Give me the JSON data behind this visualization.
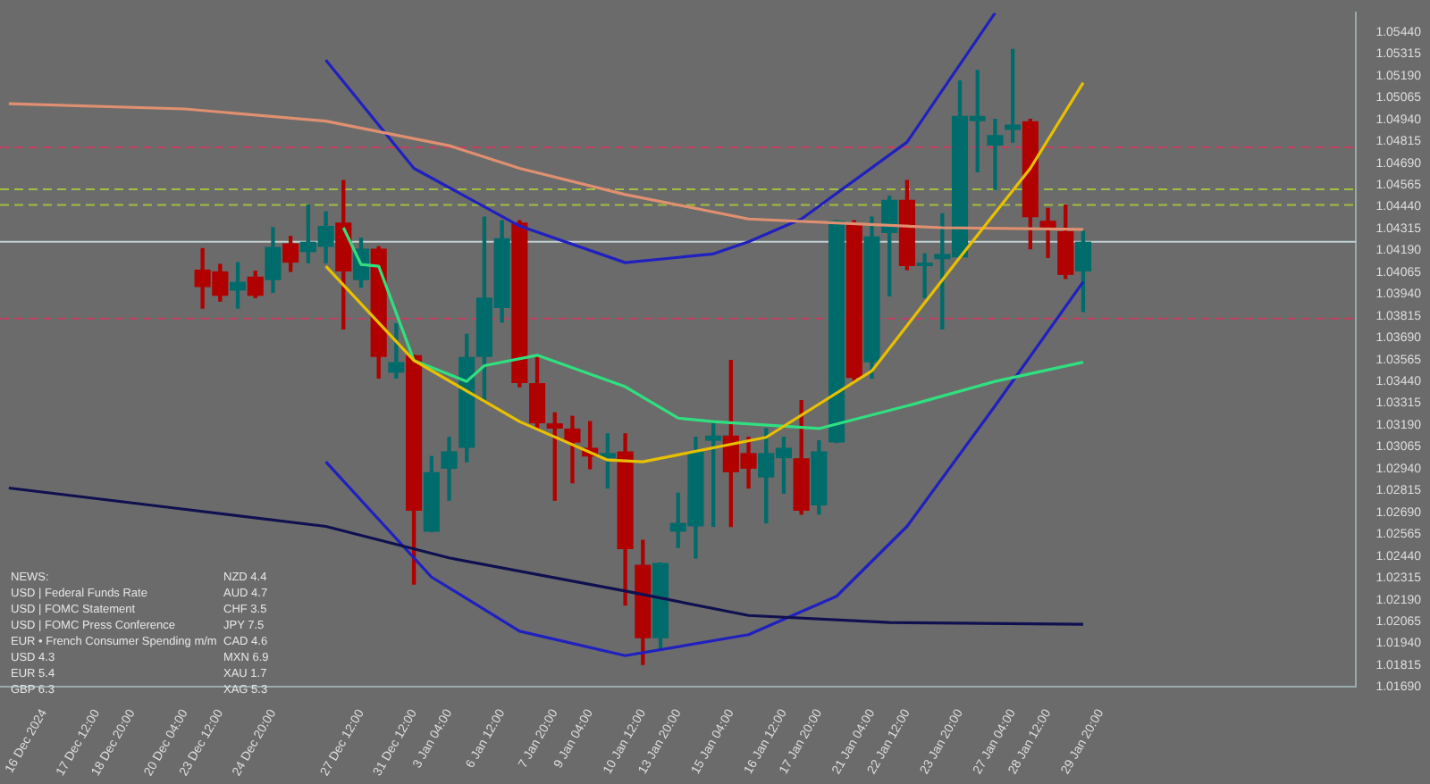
{
  "chart_data": {
    "type": "candlestick",
    "categories": [
      null,
      null,
      "16 Dec 2024",
      null,
      null,
      "17 Dec 12:00",
      null,
      "18 Dec 20:00",
      null,
      null,
      "20 Dec 04:00",
      null,
      "23 Dec 12:00",
      null,
      null,
      "24 Dec 20:00",
      null,
      null,
      null,
      null,
      "27 Dec 12:00",
      null,
      null,
      "31 Dec 12:00",
      null,
      "3 Jan 04:00",
      null,
      null,
      "6 Jan 12:00",
      null,
      null,
      "7 Jan 20:00",
      null,
      "9 Jan 04:00",
      null,
      null,
      "10 Jan 12:00",
      null,
      "13 Jan 20:00",
      null,
      null,
      "15 Jan 04:00",
      null,
      null,
      "16 Jan 12:00",
      null,
      "17 Jan 20:00",
      null,
      null,
      "21 Jan 04:00",
      null,
      "22 Jan 12:00",
      null,
      null,
      "23 Jan 20:00",
      null,
      null,
      "27 Jan 04:00",
      null,
      "28 Jan 12:00",
      null,
      null,
      "29 Jan 20:00",
      null,
      null,
      null,
      null,
      null,
      null,
      null,
      null,
      null,
      null,
      null,
      null,
      null,
      null
    ],
    "ohlc": [
      null,
      null,
      null,
      null,
      null,
      null,
      null,
      null,
      null,
      null,
      null,
      [
        1.0408,
        1.042,
        1.0386,
        1.0398
      ],
      [
        1.0407,
        1.0411,
        1.039,
        1.0393
      ],
      [
        1.0396,
        1.0412,
        1.0386,
        1.0401
      ],
      [
        1.0404,
        1.0407,
        1.0392,
        1.0393
      ],
      [
        1.0402,
        1.0432,
        1.0395,
        1.0421
      ],
      [
        1.0423,
        1.0427,
        1.0407,
        1.0412
      ],
      [
        1.0418,
        1.0445,
        1.0412,
        1.0424
      ],
      [
        1.0421,
        1.0441,
        1.0412,
        1.0433
      ],
      [
        1.0435,
        1.0459,
        1.0374,
        1.0407
      ],
      [
        1.0402,
        1.0426,
        1.0398,
        1.042
      ],
      [
        1.042,
        1.0421,
        1.0346,
        1.0358
      ],
      [
        1.0349,
        1.0377,
        1.0346,
        1.0355
      ],
      [
        1.0359,
        1.0359,
        1.0228,
        1.027
      ],
      [
        1.0258,
        1.0301,
        1.0258,
        1.0292
      ],
      [
        1.0294,
        1.0312,
        1.0276,
        1.0304
      ],
      [
        1.0306,
        1.0371,
        1.0298,
        1.0358
      ],
      [
        1.0358,
        1.0438,
        1.0332,
        1.0392
      ],
      [
        1.0386,
        1.0436,
        1.0378,
        1.0426
      ],
      [
        1.0435,
        1.0436,
        1.0341,
        1.0343
      ],
      [
        1.0343,
        1.0359,
        1.0317,
        1.032
      ],
      [
        1.032,
        1.0326,
        1.0276,
        1.0317
      ],
      [
        1.0317,
        1.0324,
        1.0286,
        1.0309
      ],
      [
        1.0306,
        1.0321,
        1.0294,
        1.0301
      ],
      [
        1.03,
        1.0314,
        1.0283,
        1.0303
      ],
      [
        1.0304,
        1.0314,
        1.0216,
        1.0248
      ],
      [
        1.0239,
        1.0253,
        1.0182,
        1.0197
      ],
      [
        1.0197,
        1.024,
        1.0191,
        1.024
      ],
      [
        1.0258,
        1.028,
        1.0249,
        1.0263
      ],
      [
        1.0261,
        1.0312,
        1.0243,
        1.0304
      ],
      [
        1.031,
        1.032,
        1.0261,
        1.0313
      ],
      [
        1.0313,
        1.0356,
        1.0261,
        1.0292
      ],
      [
        1.0303,
        1.0312,
        1.0283,
        1.0294
      ],
      [
        1.0289,
        1.0317,
        1.0263,
        1.0303
      ],
      [
        1.03,
        1.0312,
        1.028,
        1.0306
      ],
      [
        1.03,
        1.0333,
        1.0268,
        1.027
      ],
      [
        1.0273,
        1.031,
        1.0268,
        1.0304
      ],
      [
        1.0309,
        1.0436,
        1.0309,
        1.0436
      ],
      [
        1.0434,
        1.0436,
        1.0344,
        1.0346
      ],
      [
        1.0355,
        1.0438,
        1.0346,
        1.0427
      ],
      [
        1.0429,
        1.045,
        1.0393,
        1.0448
      ],
      [
        1.0448,
        1.0459,
        1.0408,
        1.041
      ],
      [
        1.041,
        1.0417,
        1.0392,
        1.0412
      ],
      [
        1.0414,
        1.044,
        1.0374,
        1.0417
      ],
      [
        1.0415,
        1.0516,
        1.0415,
        1.0496
      ],
      [
        1.0493,
        1.0522,
        1.0464,
        1.0496
      ],
      [
        1.0479,
        1.0494,
        1.0454,
        1.0485
      ],
      [
        1.0488,
        1.0534,
        1.0481,
        1.0491
      ],
      [
        1.0493,
        1.0494,
        1.042,
        1.0438
      ],
      [
        1.0436,
        1.0443,
        1.0415,
        1.0432
      ],
      [
        1.043,
        1.0445,
        1.0403,
        1.0405
      ],
      [
        1.0407,
        1.043,
        1.0384,
        1.0424
      ],
      null,
      null,
      null,
      null,
      null,
      null,
      null,
      null,
      null,
      null,
      null,
      null,
      null,
      null,
      null
    ],
    "colors": [
      null,
      null,
      null,
      null,
      null,
      null,
      null,
      null,
      null,
      null,
      null,
      "#b00000",
      "#b00000",
      "#006b6b",
      "#b00000",
      "#006b6b",
      "#b00000",
      "#006b6b",
      "#006b6b",
      "#b00000",
      "#006b6b",
      "#b00000",
      "#006b6b",
      "#b00000",
      "#006b6b",
      "#006b6b",
      "#006b6b",
      "#006b6b",
      "#006b6b",
      "#b00000",
      "#b00000",
      "#b00000",
      "#b00000",
      "#b00000",
      "#006b6b",
      "#b00000",
      "#b00000",
      "#006b6b",
      "#006b6b",
      "#006b6b",
      "#006b6b",
      "#b00000",
      "#b00000",
      "#006b6b",
      "#006b6b",
      "#b00000",
      "#006b6b",
      "#006b6b",
      "#b00000",
      "#006b6b",
      "#006b6b",
      "#b00000",
      "#006b6b",
      "#006b6b",
      "#006b6b",
      "#006b6b",
      "#006b6b",
      "#006b6b",
      "#b00000",
      "#b00000",
      "#b00000",
      "#006b6b",
      null,
      null,
      null,
      null,
      null,
      null,
      null,
      null,
      null,
      null,
      null,
      null,
      null,
      null,
      null
    ],
    "series": [
      {
        "type": "line",
        "color": "#e8c000",
        "values": [
          null,
          null,
          null,
          null,
          null,
          null,
          null,
          null,
          null,
          null,
          null,
          null,
          null,
          null,
          null,
          null,
          null,
          null,
          1.041,
          null,
          null,
          null,
          null,
          1.0356,
          null,
          null,
          null,
          null,
          null,
          1.0321,
          null,
          null,
          null,
          null,
          1.0299,
          null,
          1.0298,
          null,
          null,
          null,
          null,
          null,
          null,
          1.0312,
          null,
          null,
          null,
          null,
          null,
          1.035,
          null,
          null,
          null,
          null,
          1.0415,
          null,
          null,
          null,
          1.0466,
          null,
          null,
          1.0515,
          null,
          null,
          null,
          null,
          null,
          null,
          null,
          null,
          null,
          null,
          null,
          null,
          null,
          null,
          null
        ]
      },
      {
        "type": "line",
        "color": "#30e080",
        "values": [
          null,
          null,
          null,
          null,
          null,
          null,
          null,
          null,
          null,
          null,
          null,
          null,
          null,
          null,
          null,
          null,
          null,
          null,
          null,
          1.0432,
          1.0411,
          1.041,
          null,
          1.0356,
          null,
          null,
          1.0344,
          1.0353,
          null,
          null,
          1.0359,
          null,
          null,
          null,
          null,
          1.0341,
          null,
          null,
          1.0323,
          null,
          1.0321,
          null,
          null,
          null,
          null,
          null,
          1.0317,
          null,
          null,
          null,
          null,
          1.033,
          null,
          null,
          null,
          null,
          1.0344,
          null,
          null,
          null,
          null,
          1.0355,
          null,
          null,
          null,
          null,
          null,
          null,
          null,
          null,
          null,
          null,
          null,
          null,
          null,
          null,
          null
        ]
      },
      {
        "type": "line",
        "color": "#e09070",
        "values": [
          1.0503,
          null,
          null,
          null,
          null,
          null,
          null,
          null,
          null,
          null,
          1.05,
          null,
          null,
          null,
          null,
          null,
          null,
          null,
          1.0493,
          null,
          null,
          null,
          null,
          null,
          null,
          1.0479,
          null,
          null,
          null,
          1.0466,
          null,
          null,
          null,
          null,
          null,
          1.0451,
          null,
          null,
          null,
          null,
          null,
          null,
          1.0437,
          null,
          null,
          null,
          null,
          null,
          null,
          null,
          null,
          null,
          null,
          1.0432,
          null,
          null,
          null,
          null,
          null,
          null,
          null,
          1.0431,
          null,
          null,
          null,
          null,
          null,
          null,
          null,
          null,
          null,
          null,
          null,
          null,
          null,
          null,
          null
        ]
      },
      {
        "type": "line",
        "color": "#101050",
        "values": [
          1.0283,
          null,
          null,
          null,
          null,
          null,
          null,
          null,
          null,
          1.0272,
          null,
          null,
          null,
          null,
          null,
          null,
          null,
          null,
          1.0261,
          null,
          null,
          null,
          null,
          null,
          null,
          1.0243,
          null,
          null,
          null,
          null,
          null,
          null,
          null,
          null,
          null,
          1.0224,
          null,
          null,
          null,
          null,
          null,
          null,
          1.021,
          null,
          null,
          null,
          null,
          null,
          null,
          null,
          1.0206,
          null,
          null,
          null,
          null,
          null,
          null,
          null,
          null,
          null,
          null,
          1.0205,
          null,
          null,
          null,
          null,
          null,
          null,
          null,
          null,
          null,
          null,
          null,
          null,
          null,
          null,
          null
        ]
      },
      {
        "type": "line",
        "color": "#2020c0",
        "values": [
          null,
          null,
          null,
          null,
          null,
          null,
          null,
          null,
          null,
          null,
          null,
          null,
          null,
          null,
          null,
          null,
          null,
          null,
          1.0528,
          null,
          null,
          null,
          null,
          1.0466,
          null,
          null,
          null,
          null,
          null,
          1.0433,
          null,
          null,
          null,
          null,
          null,
          1.0412,
          null,
          null,
          null,
          null,
          1.0417,
          null,
          1.0424,
          null,
          null,
          1.0437,
          null,
          null,
          null,
          null,
          null,
          1.0481,
          null,
          null,
          null,
          null,
          1.0555,
          null,
          null,
          null,
          null,
          null,
          null,
          null,
          null,
          null,
          null,
          null,
          null,
          null,
          null,
          null,
          null,
          null,
          null,
          null,
          null
        ]
      },
      {
        "type": "line",
        "color": "#2020c0",
        "values": [
          null,
          null,
          null,
          null,
          null,
          null,
          null,
          null,
          null,
          null,
          null,
          null,
          null,
          null,
          null,
          null,
          null,
          null,
          1.0298,
          null,
          null,
          null,
          null,
          null,
          1.0232,
          null,
          null,
          null,
          null,
          1.0201,
          null,
          null,
          null,
          null,
          null,
          1.0187,
          null,
          null,
          null,
          null,
          null,
          null,
          1.0199,
          null,
          null,
          null,
          null,
          1.0221,
          null,
          null,
          null,
          1.0261,
          null,
          null,
          null,
          null,
          1.033,
          null,
          null,
          null,
          null,
          1.0401,
          null,
          null,
          null,
          null,
          null,
          null,
          null,
          null,
          null,
          null,
          null,
          null,
          null,
          null,
          null
        ]
      }
    ],
    "ref_lines": [
      {
        "axis": "y",
        "value": 1.0478,
        "color": "#c04060",
        "line_style": "dashed"
      },
      {
        "axis": "y",
        "value": 1.0454,
        "color": "#a0c040",
        "line_style": "dashed"
      },
      {
        "axis": "y",
        "value": 1.0445,
        "color": "#a0c040",
        "line_style": "dashed"
      },
      {
        "axis": "y",
        "value": 1.0424,
        "color": "#c0d0d0",
        "line_style": "solid"
      },
      {
        "axis": "y",
        "value": 1.038,
        "color": "#c04060",
        "line_style": "dashed"
      }
    ],
    "ylim": [
      1.0169,
      1.0555
    ],
    "yticks": [
      {
        "value": 1.0544,
        "label": "1.05440"
      },
      {
        "value": 1.05315,
        "label": "1.05315"
      },
      {
        "value": 1.0519,
        "label": "1.05190"
      },
      {
        "value": 1.05065,
        "label": "1.05065"
      },
      {
        "value": 1.0494,
        "label": "1.04940"
      },
      {
        "value": 1.04815,
        "label": "1.04815"
      },
      {
        "value": 1.0469,
        "label": "1.04690"
      },
      {
        "value": 1.04565,
        "label": "1.04565"
      },
      {
        "value": 1.0444,
        "label": "1.04440"
      },
      {
        "value": 1.04315,
        "label": "1.04315"
      },
      {
        "value": 1.0419,
        "label": "1.04190"
      },
      {
        "value": 1.04065,
        "label": "1.04065"
      },
      {
        "value": 1.0394,
        "label": "1.03940"
      },
      {
        "value": 1.03815,
        "label": "1.03815"
      },
      {
        "value": 1.0369,
        "label": "1.03690"
      },
      {
        "value": 1.03565,
        "label": "1.03565"
      },
      {
        "value": 1.0344,
        "label": "1.03440"
      },
      {
        "value": 1.03315,
        "label": "1.03315"
      },
      {
        "value": 1.0319,
        "label": "1.03190"
      },
      {
        "value": 1.03065,
        "label": "1.03065"
      },
      {
        "value": 1.0294,
        "label": "1.02940"
      },
      {
        "value": 1.02815,
        "label": "1.02815"
      },
      {
        "value": 1.0269,
        "label": "1.02690"
      },
      {
        "value": 1.02565,
        "label": "1.02565"
      },
      {
        "value": 1.0244,
        "label": "1.02440"
      },
      {
        "value": 1.02315,
        "label": "1.02315"
      },
      {
        "value": 1.0219,
        "label": "1.02190"
      },
      {
        "value": 1.02065,
        "label": "1.02065"
      },
      {
        "value": 1.0194,
        "label": "1.01940"
      },
      {
        "value": 1.01815,
        "label": "1.01815"
      },
      {
        "value": 1.0169,
        "label": "1.01690"
      }
    ],
    "annotations": [
      "NEWS:",
      "USD | Federal Funds Rate",
      "USD | FOMC Statement",
      "USD | FOMC Press Conference",
      "EUR • French Consumer Spending m/m",
      "USD 4.3",
      "EUR 5.4",
      "GBP 6.3",
      "NZD 4.4",
      "AUD 4.7",
      "CHF 3.5",
      "JPY 7.5",
      "CAD 4.6",
      "MXN 6.9",
      "XAU 1.7",
      "XAG 5.3"
    ],
    "grid": false,
    "legend": false,
    "marker": "none"
  }
}
